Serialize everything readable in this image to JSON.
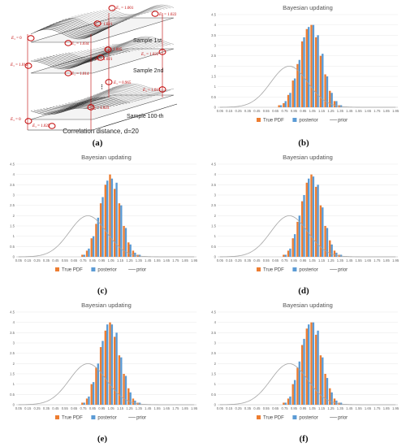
{
  "captions": [
    "(a)",
    "(b)",
    "(c)",
    "(d)",
    "(e)",
    "(f)"
  ],
  "diagram": {
    "sample_labels": [
      "Sample 1st",
      "Sample 2nd",
      "Sample 100-th"
    ],
    "correlation_label": "Correlation distance, d=20",
    "dots": "⋮",
    "annotations": [
      {
        "sub": "1",
        "value": "1.001"
      },
      {
        "sub": "1",
        "value": "1.022"
      },
      {
        "sub": "1",
        "value": "1.021"
      },
      {
        "sub": "1",
        "value": "0"
      },
      {
        "sub": "1",
        "value": "1.034"
      },
      {
        "sub": "1",
        "value": "1.005"
      },
      {
        "sub": "1",
        "value": "1.022"
      },
      {
        "sub": "1",
        "value": "1.012"
      },
      {
        "sub": "1",
        "value": "1.021"
      },
      {
        "sub": "1",
        "value": "1.014"
      },
      {
        "sub": "1",
        "value": "0.965"
      },
      {
        "sub": "1",
        "value": "1.017"
      },
      {
        "sub": "1",
        "value": "1.023"
      },
      {
        "sub": "1",
        "value": "0"
      },
      {
        "sub": "1",
        "value": "1.025"
      }
    ]
  },
  "colors": {
    "true_pdf": "#ed7d31",
    "posterior": "#5b9bd5",
    "prior": "#a5a5a5",
    "axis": "#d9d9d9"
  },
  "chart_data": [
    {
      "id": "b",
      "type": "bar",
      "title": "Bayesian updating",
      "x": [
        0.05,
        0.1,
        0.15,
        0.2,
        0.25,
        0.3,
        0.35,
        0.4,
        0.45,
        0.5,
        0.55,
        0.6,
        0.65,
        0.7,
        0.75,
        0.8,
        0.85,
        0.9,
        0.95,
        1.0,
        1.05,
        1.1,
        1.15,
        1.2,
        1.25,
        1.3,
        1.35,
        1.4,
        1.45,
        1.5,
        1.55,
        1.6,
        1.65,
        1.7,
        1.75,
        1.8,
        1.85,
        1.9,
        1.95
      ],
      "x_tick_labels": [
        "0.05",
        "0.15",
        "0.25",
        "0.35",
        "0.45",
        "0.55",
        "0.65",
        "0.75",
        "0.85",
        "0.95",
        "1.05",
        "1.15",
        "1.25",
        "1.35",
        "1.45",
        "1.55",
        "1.65",
        "1.75",
        "1.85",
        "1.95"
      ],
      "ylim": [
        0,
        4.5
      ],
      "y_ticks": [
        "0",
        "0.5",
        "1",
        "1.5",
        "2",
        "2.5",
        "3",
        "3.5",
        "4",
        "4.5"
      ],
      "series": [
        {
          "name": "True PDF",
          "style": "bar",
          "values": [
            0,
            0,
            0,
            0,
            0,
            0,
            0,
            0,
            0,
            0,
            0,
            0,
            0,
            0.1,
            0.2,
            0.6,
            1.3,
            2.1,
            3.2,
            3.8,
            4.0,
            3.4,
            2.5,
            1.6,
            0.8,
            0.3,
            0.1,
            0,
            0,
            0,
            0,
            0,
            0,
            0,
            0,
            0,
            0,
            0,
            0
          ]
        },
        {
          "name": "posterior",
          "style": "bar",
          "values": [
            0,
            0,
            0,
            0,
            0,
            0,
            0,
            0,
            0,
            0,
            0,
            0,
            0,
            0.1,
            0.3,
            0.7,
            1.4,
            2.3,
            3.4,
            3.9,
            4.0,
            3.5,
            2.6,
            1.5,
            0.7,
            0.3,
            0.1,
            0,
            0,
            0,
            0,
            0,
            0,
            0,
            0,
            0,
            0,
            0,
            0
          ]
        },
        {
          "name": "prior",
          "style": "line",
          "mean": 0.8,
          "sd": 0.2
        }
      ],
      "legend": "bottom"
    },
    {
      "id": "c",
      "type": "bar",
      "title": "Bayesian updating",
      "x": [
        0.05,
        0.1,
        0.15,
        0.2,
        0.25,
        0.3,
        0.35,
        0.4,
        0.45,
        0.5,
        0.55,
        0.6,
        0.65,
        0.7,
        0.75,
        0.8,
        0.85,
        0.9,
        0.95,
        1.0,
        1.05,
        1.1,
        1.15,
        1.2,
        1.25,
        1.3,
        1.35,
        1.4,
        1.45,
        1.5,
        1.55,
        1.6,
        1.65,
        1.7,
        1.75,
        1.8,
        1.85,
        1.9,
        1.95
      ],
      "x_tick_labels": [
        "0.05",
        "0.15",
        "0.25",
        "0.35",
        "0.45",
        "0.55",
        "0.65",
        "0.75",
        "0.85",
        "0.95",
        "1.05",
        "1.15",
        "1.25",
        "1.35",
        "1.45",
        "1.55",
        "1.65",
        "1.75",
        "1.85",
        "1.95"
      ],
      "ylim": [
        0,
        4.5
      ],
      "y_ticks": [
        "0",
        "0.5",
        "1",
        "1.5",
        "2",
        "2.5",
        "3",
        "3.5",
        "4",
        "4.5"
      ],
      "series": [
        {
          "name": "True PDF",
          "style": "bar",
          "values": [
            0,
            0,
            0,
            0,
            0,
            0,
            0,
            0,
            0,
            0,
            0,
            0,
            0,
            0,
            0.1,
            0.3,
            0.9,
            1.6,
            2.6,
            3.5,
            4.0,
            3.3,
            2.6,
            1.5,
            0.7,
            0.3,
            0.1,
            0,
            0,
            0,
            0,
            0,
            0,
            0,
            0,
            0,
            0,
            0,
            0
          ]
        },
        {
          "name": "posterior",
          "style": "bar",
          "values": [
            0,
            0,
            0,
            0,
            0,
            0,
            0,
            0,
            0,
            0,
            0,
            0,
            0,
            0,
            0.1,
            0.4,
            1.0,
            1.9,
            2.9,
            3.7,
            3.8,
            3.6,
            2.5,
            1.4,
            0.6,
            0.2,
            0.1,
            0,
            0,
            0,
            0,
            0,
            0,
            0,
            0,
            0,
            0,
            0,
            0
          ]
        },
        {
          "name": "prior",
          "style": "line",
          "mean": 0.8,
          "sd": 0.2
        }
      ],
      "legend": "bottom"
    },
    {
      "id": "d",
      "type": "bar",
      "title": "Bayesian updating",
      "x": [
        0.05,
        0.1,
        0.15,
        0.2,
        0.25,
        0.3,
        0.35,
        0.4,
        0.45,
        0.5,
        0.55,
        0.6,
        0.65,
        0.7,
        0.75,
        0.8,
        0.85,
        0.9,
        0.95,
        1.0,
        1.05,
        1.1,
        1.15,
        1.2,
        1.25,
        1.3,
        1.35,
        1.4,
        1.45,
        1.5,
        1.55,
        1.6,
        1.65,
        1.7,
        1.75,
        1.8,
        1.85,
        1.9,
        1.95
      ],
      "x_tick_labels": [
        "0.05",
        "0.15",
        "0.25",
        "0.35",
        "0.45",
        "0.55",
        "0.65",
        "0.75",
        "0.85",
        "0.95",
        "1.05",
        "1.15",
        "1.25",
        "1.35",
        "1.45",
        "1.55",
        "1.65",
        "1.75",
        "1.85",
        "1.95"
      ],
      "ylim": [
        0,
        4.5
      ],
      "y_ticks": [
        "0",
        "0.5",
        "1",
        "1.5",
        "2",
        "2.5",
        "3",
        "3.5",
        "4",
        "4.5"
      ],
      "series": [
        {
          "name": "True PDF",
          "style": "bar",
          "values": [
            0,
            0,
            0,
            0,
            0,
            0,
            0,
            0,
            0,
            0,
            0,
            0,
            0,
            0,
            0.1,
            0.3,
            0.9,
            1.7,
            2.7,
            3.6,
            4.0,
            3.4,
            2.5,
            1.5,
            0.8,
            0.3,
            0.1,
            0,
            0,
            0,
            0,
            0,
            0,
            0,
            0,
            0,
            0,
            0,
            0
          ]
        },
        {
          "name": "posterior",
          "style": "bar",
          "values": [
            0,
            0,
            0,
            0,
            0,
            0,
            0,
            0,
            0,
            0,
            0,
            0,
            0,
            0,
            0.1,
            0.4,
            1.1,
            2.0,
            3.0,
            3.8,
            3.9,
            3.5,
            2.4,
            1.4,
            0.6,
            0.2,
            0.1,
            0,
            0,
            0,
            0,
            0,
            0,
            0,
            0,
            0,
            0,
            0,
            0
          ]
        },
        {
          "name": "prior",
          "style": "line",
          "mean": 0.8,
          "sd": 0.2
        }
      ],
      "legend": "bottom"
    },
    {
      "id": "e",
      "type": "bar",
      "title": "Bayesian updating",
      "x": [
        0.05,
        0.1,
        0.15,
        0.2,
        0.25,
        0.3,
        0.35,
        0.4,
        0.45,
        0.5,
        0.55,
        0.6,
        0.65,
        0.7,
        0.75,
        0.8,
        0.85,
        0.9,
        0.95,
        1.0,
        1.05,
        1.1,
        1.15,
        1.2,
        1.25,
        1.3,
        1.35,
        1.4,
        1.45,
        1.5,
        1.55,
        1.6,
        1.65,
        1.7,
        1.75,
        1.8,
        1.85,
        1.9,
        1.95
      ],
      "x_tick_labels": [
        "0.05",
        "0.15",
        "0.25",
        "0.35",
        "0.45",
        "0.55",
        "0.65",
        "0.75",
        "0.85",
        "0.95",
        "1.05",
        "1.15",
        "1.25",
        "1.35",
        "1.45",
        "1.55",
        "1.65",
        "1.75",
        "1.85",
        "1.95"
      ],
      "ylim": [
        0,
        4.5
      ],
      "y_ticks": [
        "0",
        "0.5",
        "1",
        "1.5",
        "2",
        "2.5",
        "3",
        "3.5",
        "4",
        "4.5"
      ],
      "series": [
        {
          "name": "True PDF",
          "style": "bar",
          "values": [
            0,
            0,
            0,
            0,
            0,
            0,
            0,
            0,
            0,
            0,
            0,
            0,
            0,
            0,
            0.1,
            0.3,
            1.0,
            1.8,
            2.8,
            3.6,
            4.0,
            3.3,
            2.4,
            1.5,
            0.8,
            0.3,
            0.1,
            0,
            0,
            0,
            0,
            0,
            0,
            0,
            0,
            0,
            0,
            0,
            0
          ]
        },
        {
          "name": "posterior",
          "style": "bar",
          "values": [
            0,
            0,
            0,
            0,
            0,
            0,
            0,
            0,
            0,
            0,
            0,
            0,
            0,
            0,
            0.1,
            0.4,
            1.1,
            2.0,
            3.1,
            3.9,
            3.9,
            3.5,
            2.3,
            1.4,
            0.6,
            0.2,
            0.1,
            0,
            0,
            0,
            0,
            0,
            0,
            0,
            0,
            0,
            0,
            0,
            0
          ]
        },
        {
          "name": "prior",
          "style": "line",
          "mean": 0.8,
          "sd": 0.2
        }
      ],
      "legend": "bottom"
    },
    {
      "id": "f",
      "type": "bar",
      "title": "Bayesian updating",
      "x": [
        0.05,
        0.1,
        0.15,
        0.2,
        0.25,
        0.3,
        0.35,
        0.4,
        0.45,
        0.5,
        0.55,
        0.6,
        0.65,
        0.7,
        0.75,
        0.8,
        0.85,
        0.9,
        0.95,
        1.0,
        1.05,
        1.1,
        1.15,
        1.2,
        1.25,
        1.3,
        1.35,
        1.4,
        1.45,
        1.5,
        1.55,
        1.6,
        1.65,
        1.7,
        1.75,
        1.8,
        1.85,
        1.9,
        1.95
      ],
      "x_tick_labels": [
        "0.05",
        "0.15",
        "0.25",
        "0.35",
        "0.45",
        "0.55",
        "0.65",
        "0.75",
        "0.85",
        "0.95",
        "1.05",
        "1.15",
        "1.25",
        "1.35",
        "1.45",
        "1.55",
        "1.65",
        "1.75",
        "1.85",
        "1.95"
      ],
      "ylim": [
        0,
        4.5
      ],
      "y_ticks": [
        "0",
        "0.5",
        "1",
        "1.5",
        "2",
        "2.5",
        "3",
        "3.5",
        "4",
        "4.5"
      ],
      "series": [
        {
          "name": "True PDF",
          "style": "bar",
          "values": [
            0,
            0,
            0,
            0,
            0,
            0,
            0,
            0,
            0,
            0,
            0,
            0,
            0,
            0,
            0.1,
            0.3,
            1.0,
            1.8,
            2.9,
            3.7,
            4.0,
            3.4,
            2.4,
            1.5,
            0.8,
            0.3,
            0.1,
            0,
            0,
            0,
            0,
            0,
            0,
            0,
            0,
            0,
            0,
            0,
            0
          ]
        },
        {
          "name": "posterior",
          "style": "bar",
          "values": [
            0,
            0,
            0,
            0,
            0,
            0,
            0,
            0,
            0,
            0,
            0,
            0,
            0,
            0,
            0.1,
            0.4,
            1.2,
            2.1,
            3.2,
            3.9,
            4.0,
            3.6,
            2.3,
            1.3,
            0.6,
            0.2,
            0.1,
            0,
            0,
            0,
            0,
            0,
            0,
            0,
            0,
            0,
            0,
            0,
            0
          ]
        },
        {
          "name": "prior",
          "style": "line",
          "mean": 0.8,
          "sd": 0.2
        }
      ],
      "legend": "bottom"
    }
  ]
}
